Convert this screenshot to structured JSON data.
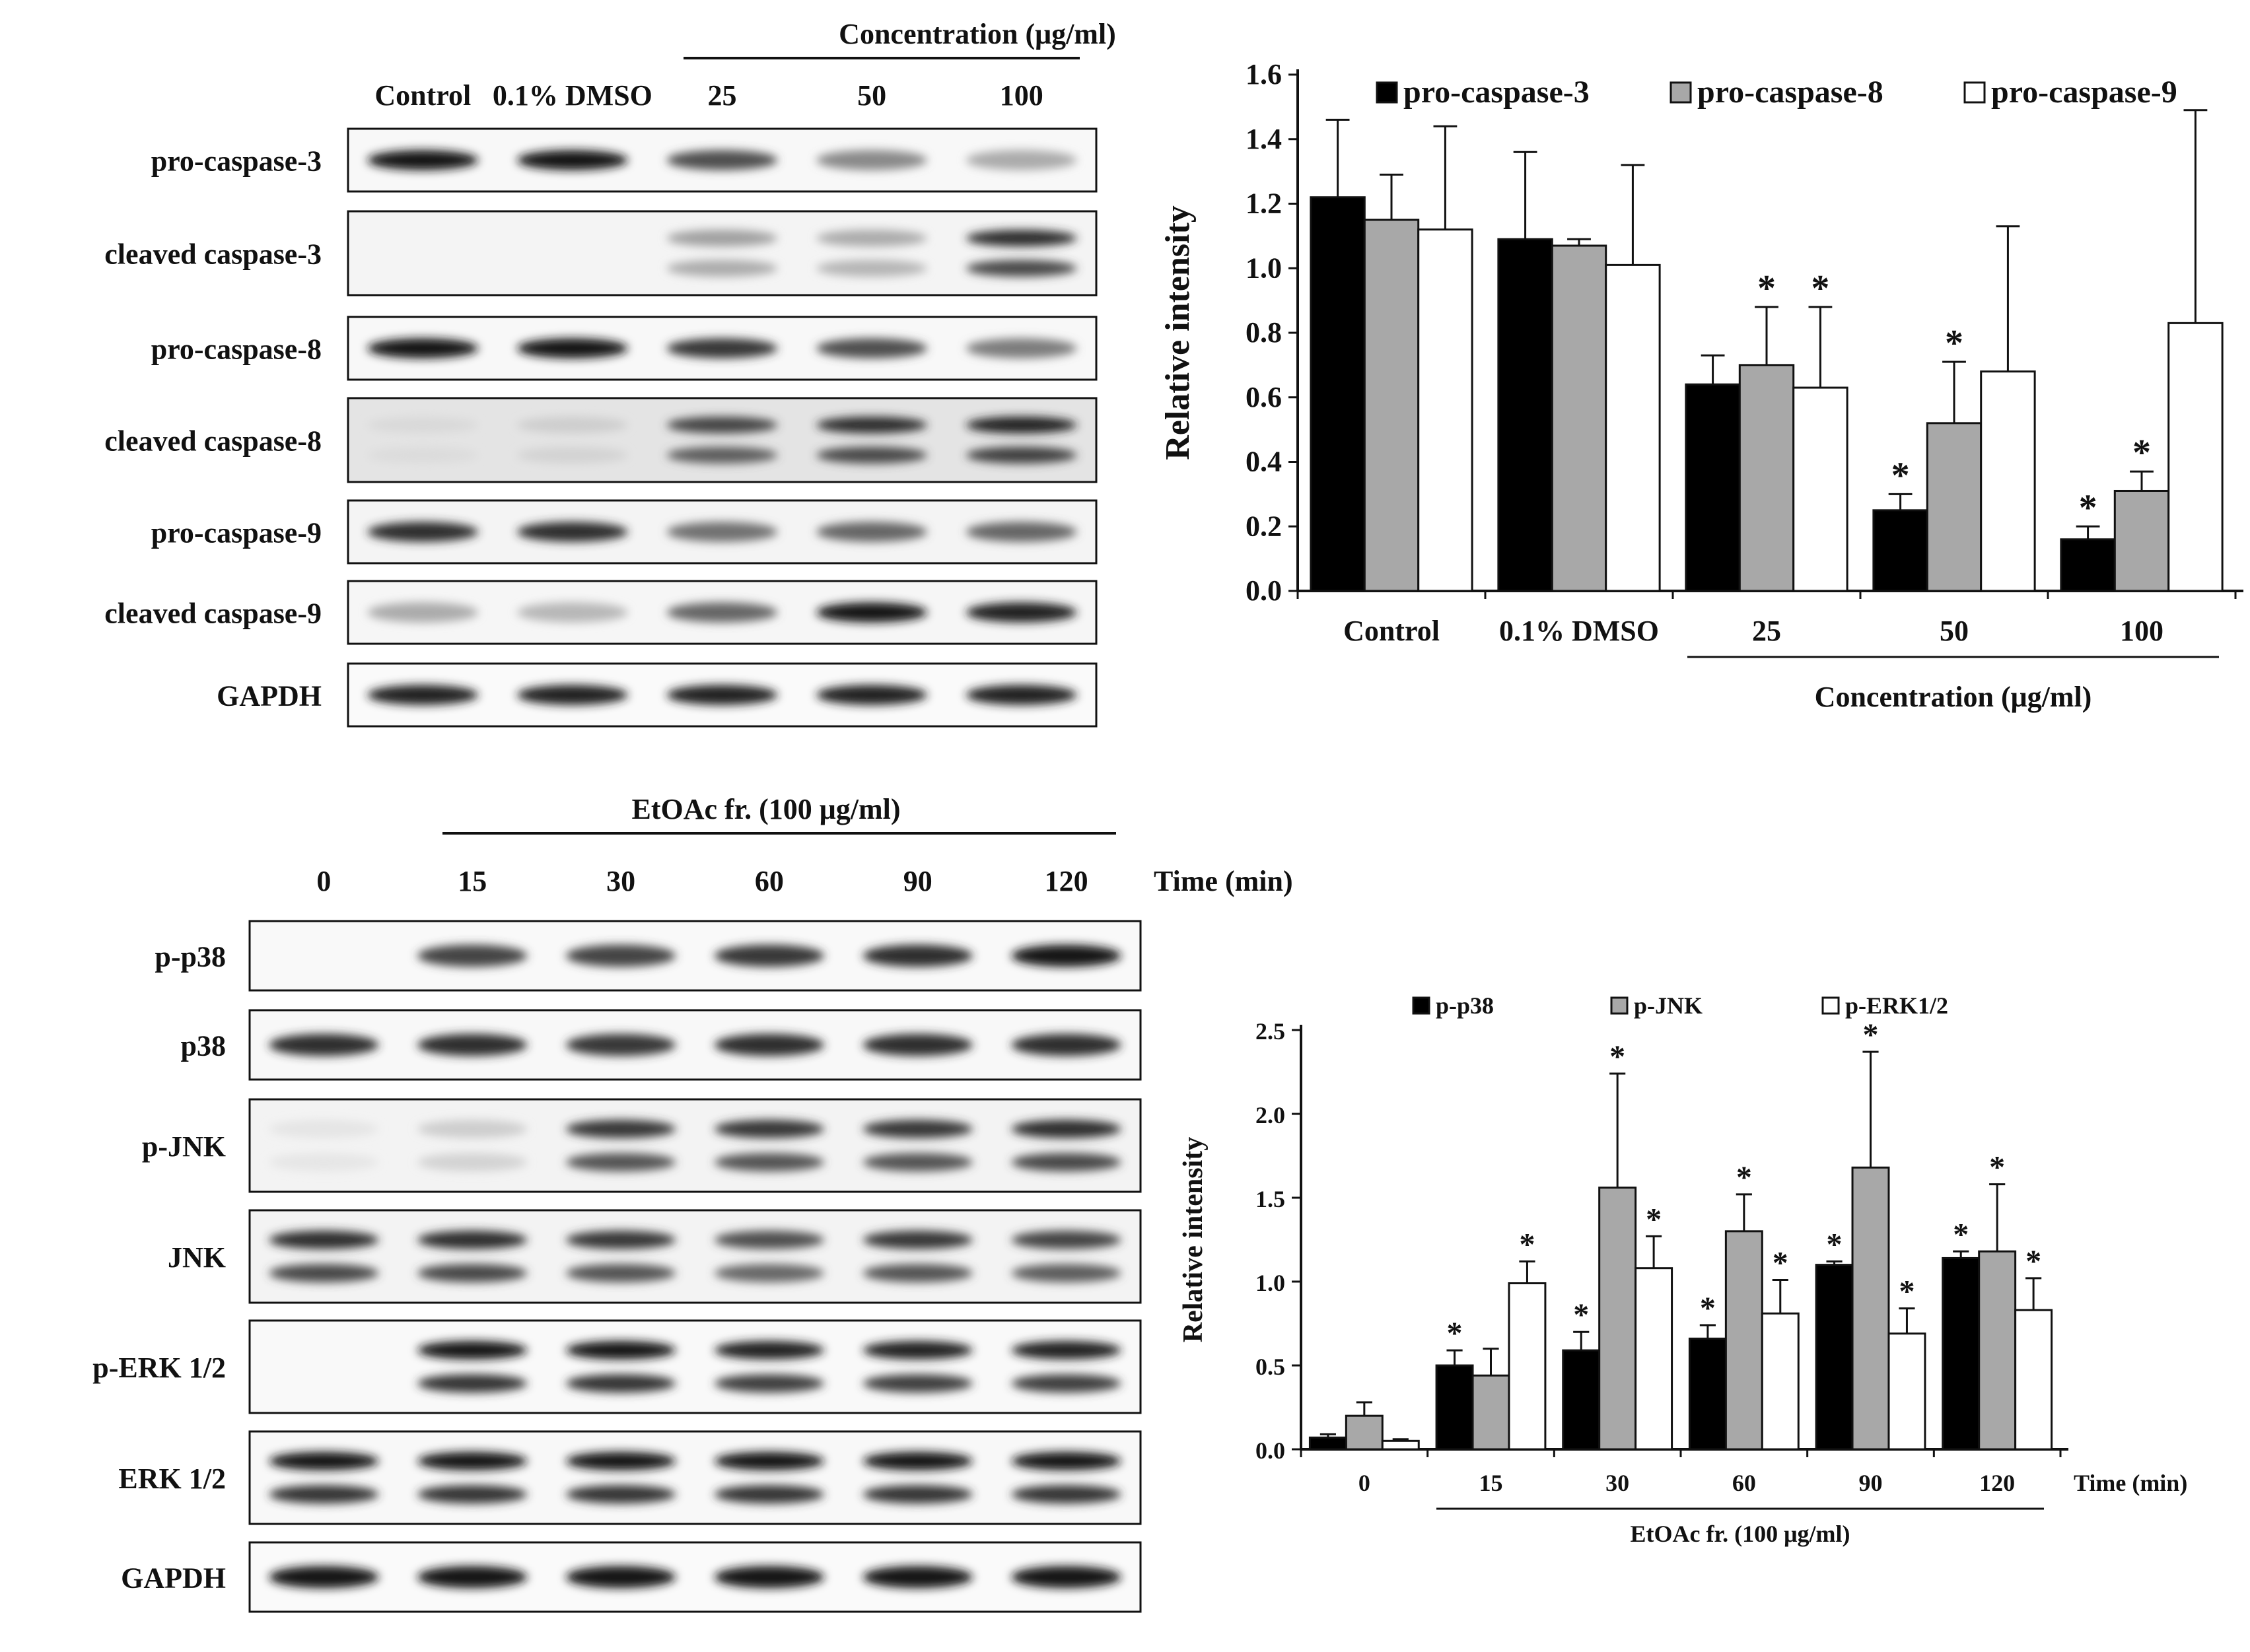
{
  "blot_top": {
    "group_header": "Concentration (μg/ml)",
    "lanes": [
      "Control",
      "0.1% DMSO",
      "25",
      "50",
      "100"
    ],
    "rows": [
      {
        "label": "pro-caspase-3",
        "intensity": [
          0.95,
          0.95,
          0.7,
          0.45,
          0.3
        ],
        "double": false,
        "bg": 0.02
      },
      {
        "label": "cleaved caspase-3",
        "intensity": [
          0.0,
          0.0,
          0.35,
          0.3,
          0.85
        ],
        "double": true,
        "bg": 0.05
      },
      {
        "label": "pro-caspase-8",
        "intensity": [
          0.95,
          0.95,
          0.8,
          0.7,
          0.5
        ],
        "double": false,
        "bg": 0.02
      },
      {
        "label": "cleaved caspase-8",
        "intensity": [
          0.1,
          0.15,
          0.75,
          0.85,
          0.9
        ],
        "double": true,
        "bg": 0.18
      },
      {
        "label": "pro-caspase-9",
        "intensity": [
          0.85,
          0.85,
          0.55,
          0.6,
          0.6
        ],
        "double": false,
        "bg": 0.05
      },
      {
        "label": "cleaved caspase-9",
        "intensity": [
          0.3,
          0.25,
          0.6,
          0.95,
          0.9
        ],
        "double": false,
        "bg": 0.03
      },
      {
        "label": "GAPDH",
        "intensity": [
          0.9,
          0.9,
          0.9,
          0.9,
          0.9
        ],
        "double": false,
        "bg": 0.0
      }
    ]
  },
  "blot_bottom": {
    "group_header": "EtOAc fr. (100 μg/ml)",
    "time_label": "Time (min)",
    "lanes": [
      "0",
      "15",
      "30",
      "60",
      "90",
      "120"
    ],
    "rows": [
      {
        "label": "p-p38",
        "intensity": [
          0.0,
          0.75,
          0.75,
          0.8,
          0.85,
          0.95
        ],
        "double": false,
        "bg": 0.01
      },
      {
        "label": "p38",
        "intensity": [
          0.85,
          0.85,
          0.8,
          0.85,
          0.85,
          0.85
        ],
        "double": false,
        "bg": 0.02
      },
      {
        "label": "p-JNK",
        "intensity": [
          0.05,
          0.15,
          0.8,
          0.8,
          0.8,
          0.85
        ],
        "double": true,
        "bg": 0.06
      },
      {
        "label": "JNK",
        "intensity": [
          0.85,
          0.85,
          0.8,
          0.7,
          0.8,
          0.75
        ],
        "double": true,
        "bg": 0.06
      },
      {
        "label": "p-ERK 1/2",
        "intensity": [
          0.0,
          0.95,
          0.95,
          0.9,
          0.9,
          0.9
        ],
        "double": true,
        "bg": 0.01
      },
      {
        "label": "ERK 1/2",
        "intensity": [
          0.95,
          0.95,
          0.95,
          0.95,
          0.95,
          0.95
        ],
        "double": true,
        "bg": 0.02
      },
      {
        "label": "GAPDH",
        "intensity": [
          0.95,
          0.95,
          0.95,
          0.95,
          0.95,
          0.95
        ],
        "double": false,
        "bg": 0.0
      }
    ]
  },
  "chart_data": [
    {
      "type": "bar",
      "categories": [
        "Control",
        "0.1% DMSO",
        "25",
        "50",
        "100"
      ],
      "group_label": "Concentration (μg/ml)",
      "ylabel": "Relative intensity",
      "xlabel": "",
      "ylim": [
        0,
        1.6
      ],
      "yticks": [
        "0.0",
        "0.2",
        "0.4",
        "0.6",
        "0.8",
        "1.0",
        "1.2",
        "1.4",
        "1.6"
      ],
      "legend_position": "top",
      "series": [
        {
          "name": "pro-caspase-3",
          "color": "#000000",
          "values": [
            1.22,
            1.09,
            0.64,
            0.25,
            0.16
          ],
          "errors": [
            0.24,
            0.27,
            0.09,
            0.05,
            0.04
          ],
          "significant": [
            false,
            false,
            false,
            true,
            true
          ]
        },
        {
          "name": "pro-caspase-8",
          "color": "#a8a8a8",
          "values": [
            1.15,
            1.07,
            0.7,
            0.52,
            0.31
          ],
          "errors": [
            0.14,
            0.02,
            0.18,
            0.19,
            0.06
          ],
          "significant": [
            false,
            false,
            true,
            true,
            true
          ]
        },
        {
          "name": "pro-caspase-9",
          "color": "#ffffff",
          "values": [
            1.12,
            1.01,
            0.63,
            0.68,
            0.83
          ],
          "errors": [
            0.32,
            0.31,
            0.25,
            0.45,
            0.66
          ],
          "significant": [
            false,
            false,
            true,
            false,
            false
          ]
        }
      ]
    },
    {
      "type": "bar",
      "categories": [
        "0",
        "15",
        "30",
        "60",
        "90",
        "120"
      ],
      "group_label": "EtOAc fr. (100 μg/ml)",
      "xlabel": "Time (min)",
      "ylabel": "Relative intensity",
      "ylim": [
        0,
        2.5
      ],
      "yticks": [
        "0.0",
        "0.5",
        "1.0",
        "1.5",
        "2.0",
        "2.5"
      ],
      "legend_position": "top",
      "series": [
        {
          "name": "p-p38",
          "color": "#000000",
          "values": [
            0.07,
            0.5,
            0.59,
            0.66,
            1.1,
            1.14
          ],
          "errors": [
            0.02,
            0.09,
            0.11,
            0.08,
            0.02,
            0.04
          ],
          "significant": [
            false,
            true,
            true,
            true,
            true,
            true
          ]
        },
        {
          "name": "p-JNK",
          "color": "#a8a8a8",
          "values": [
            0.2,
            0.44,
            1.56,
            1.3,
            1.68,
            1.18
          ],
          "errors": [
            0.08,
            0.16,
            0.68,
            0.22,
            0.69,
            0.4
          ],
          "significant": [
            false,
            false,
            true,
            true,
            true,
            true
          ]
        },
        {
          "name": "p-ERK1/2",
          "color": "#ffffff",
          "values": [
            0.05,
            0.99,
            1.08,
            0.81,
            0.69,
            0.83
          ],
          "errors": [
            0.01,
            0.13,
            0.19,
            0.2,
            0.15,
            0.19
          ],
          "significant": [
            false,
            true,
            true,
            true,
            true,
            true
          ]
        }
      ]
    }
  ]
}
